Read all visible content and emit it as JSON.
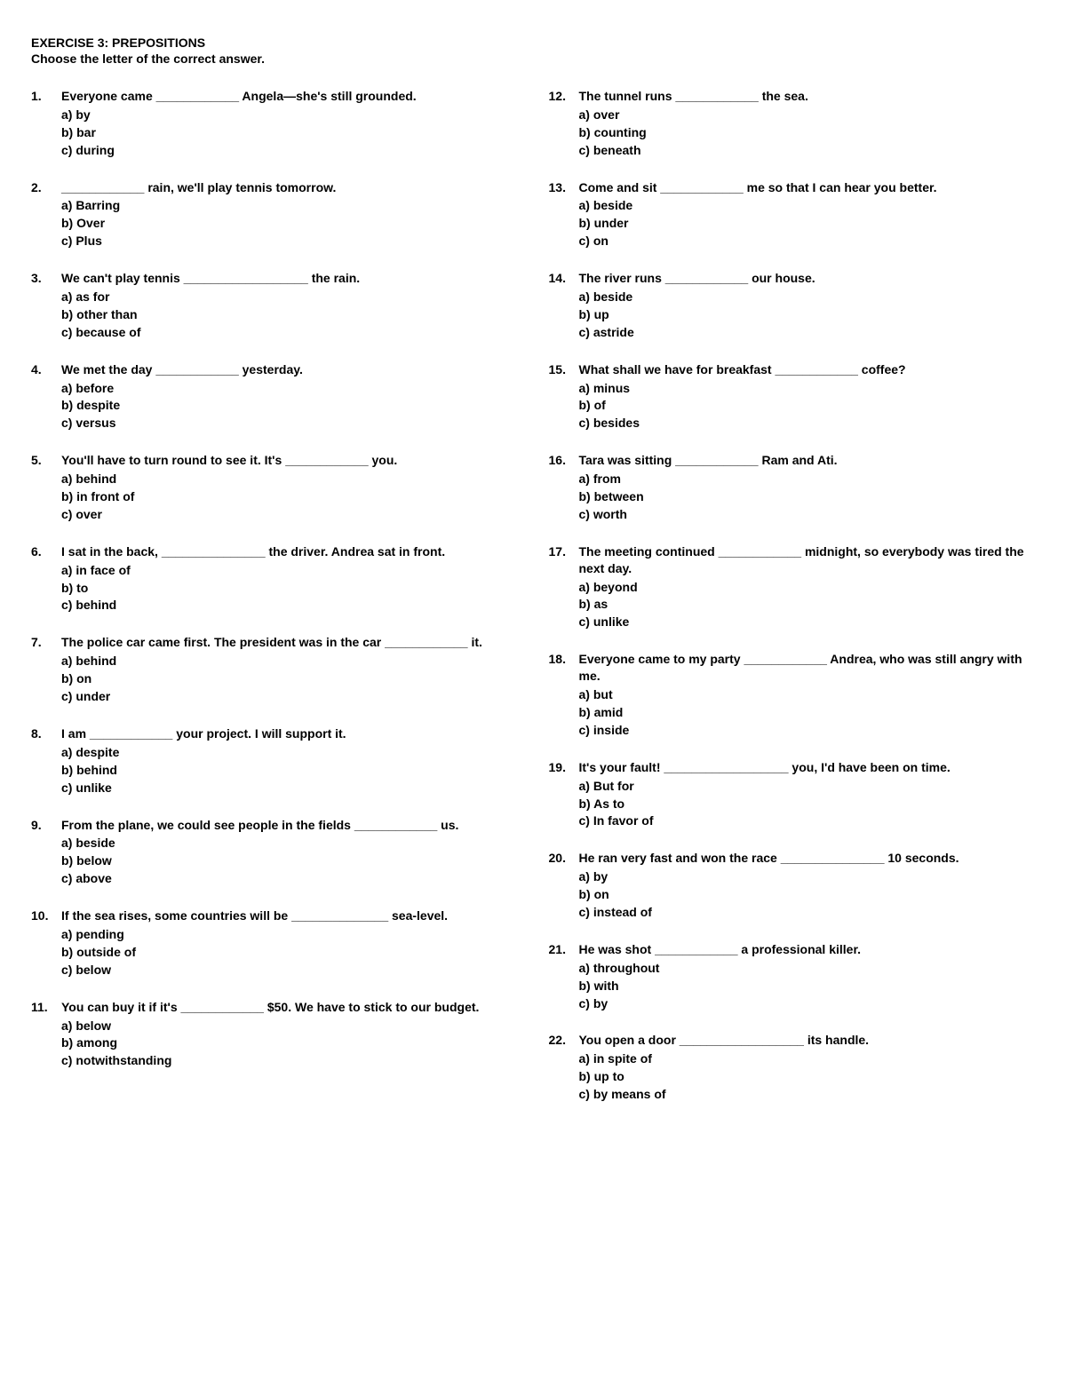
{
  "title": "EXERCISE 3: PREPOSITIONS",
  "instruction": "Choose the letter of the correct answer.",
  "left": [
    {
      "num": "1.",
      "stem": "Everyone came ____________ Angela—she's still grounded.",
      "choices": [
        "a) by",
        "b) bar",
        "c) during"
      ]
    },
    {
      "num": "2.",
      "stem": "____________ rain, we'll play tennis tomorrow.",
      "choices": [
        "a) Barring",
        "b) Over",
        "c) Plus"
      ]
    },
    {
      "num": "3.",
      "stem": "We can't play tennis __________________ the rain.",
      "choices": [
        "a) as for",
        "b) other than",
        "c) because of"
      ]
    },
    {
      "num": "4.",
      "stem": "We met the day ____________ yesterday.",
      "choices": [
        "a) before",
        "b) despite",
        "c) versus"
      ]
    },
    {
      "num": "5.",
      "stem": "You'll have to turn round to see it. It's ____________ you.",
      "choices": [
        "a) behind",
        "b) in front of",
        "c) over"
      ]
    },
    {
      "num": "6.",
      "stem": "I sat in the back, _______________ the driver. Andrea sat in front.",
      "justify": true,
      "choices": [
        "a) in face of",
        "b) to",
        "c) behind"
      ]
    },
    {
      "num": "7.",
      "stem": "The police car came first. The president was in the car ____________ it.",
      "justify": true,
      "choices": [
        "a) behind",
        "b) on",
        "c) under"
      ]
    },
    {
      "num": "8.",
      "stem": "I am ____________ your project. I will support it.",
      "choices": [
        "a) despite",
        "b) behind",
        "c) unlike"
      ]
    },
    {
      "num": "9.",
      "stem": "From the plane, we could see people in the fields ____________ us.",
      "justify": true,
      "choices": [
        "a) beside",
        "b) below",
        "c) above"
      ]
    },
    {
      "num": "10.",
      "stem": "If the sea rises, some countries will be ______________ sea-level.",
      "choices": [
        "a) pending",
        "b) outside of",
        "c) below"
      ]
    },
    {
      "num": "11.",
      "stem": "You can buy it if it's ____________ $50. We have to stick to our budget.",
      "choices": [
        "a) below",
        "b) among",
        "c) notwithstanding"
      ]
    }
  ],
  "right": [
    {
      "num": "12.",
      "stem": "The tunnel runs ____________ the sea.",
      "choices": [
        "a) over",
        "b) counting",
        "c) beneath"
      ]
    },
    {
      "num": "13.",
      "stem": "Come and sit ____________ me so that I can hear you better.",
      "choices": [
        "a) beside",
        "b) under",
        "c) on"
      ]
    },
    {
      "num": "14.",
      "stem": "The river runs ____________ our house.",
      "choices": [
        "a) beside",
        "b) up",
        "c) astride"
      ]
    },
    {
      "num": "15.",
      "stem": "What shall we have for breakfast ____________ coffee?",
      "choices": [
        "a) minus",
        "b) of",
        "c) besides"
      ]
    },
    {
      "num": "16.",
      "stem": "Tara was sitting ____________ Ram and Ati.",
      "choices": [
        "a) from",
        "b) between",
        "c) worth"
      ]
    },
    {
      "num": "17.",
      "stem": "The meeting continued ____________ midnight, so everybody was tired the next day.",
      "choices": [
        "a) beyond",
        "b) as",
        "c) unlike"
      ]
    },
    {
      "num": "18.",
      "stem": "Everyone came to my party ____________ Andrea, who was still angry with me.",
      "choices": [
        "a) but",
        "b) amid",
        "c) inside"
      ]
    },
    {
      "num": "19.",
      "stem": "It's your fault! __________________ you, I'd have been on time.",
      "choices": [
        "a) But for",
        "b) As to",
        "c) In favor of"
      ]
    },
    {
      "num": "20.",
      "stem": "He ran very fast and won the race _______________ 10 seconds.",
      "choices": [
        "a) by",
        "b) on",
        "c) instead of"
      ]
    },
    {
      "num": "21.",
      "stem": "He was shot ____________ a professional killer.",
      "choices": [
        "a) throughout",
        "b) with",
        "c) by"
      ]
    },
    {
      "num": "22.",
      "stem": "You open a door __________________ its handle.",
      "choices": [
        "a) in spite of",
        "b) up to",
        "c) by means of"
      ]
    }
  ]
}
